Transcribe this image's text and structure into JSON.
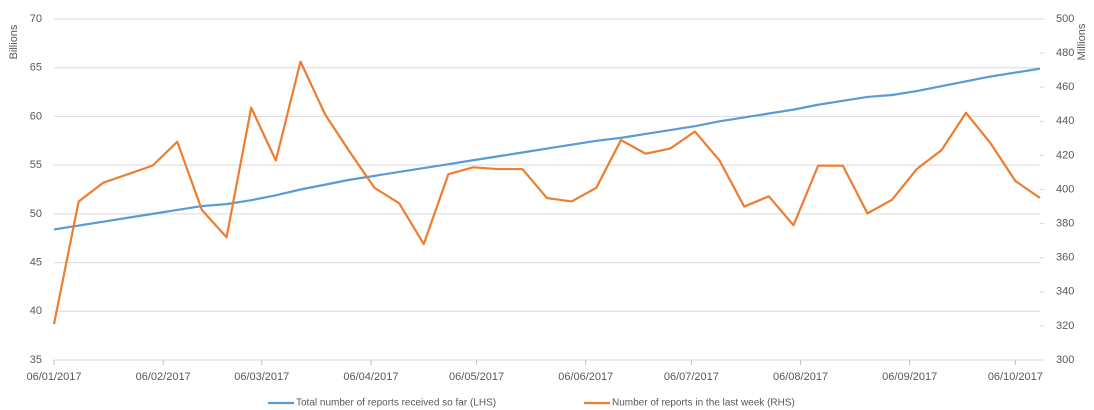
{
  "chart_data": {
    "type": "line",
    "y_label": "Billions",
    "y2_label": "Millions",
    "x": [
      "06/01/2017",
      "13/01/2017",
      "20/01/2017",
      "27/01/2017",
      "03/02/2017",
      "10/02/2017",
      "17/02/2017",
      "24/02/2017",
      "03/03/2017",
      "10/03/2017",
      "17/03/2017",
      "24/03/2017",
      "31/03/2017",
      "07/04/2017",
      "14/04/2017",
      "21/04/2017",
      "28/04/2017",
      "05/05/2017",
      "12/05/2017",
      "19/05/2017",
      "26/05/2017",
      "02/06/2017",
      "09/06/2017",
      "16/06/2017",
      "23/06/2017",
      "30/06/2017",
      "07/07/2017",
      "14/07/2017",
      "21/07/2017",
      "28/07/2017",
      "04/08/2017",
      "11/08/2017",
      "18/08/2017",
      "25/08/2017",
      "01/09/2017",
      "08/09/2017",
      "15/09/2017",
      "22/09/2017",
      "29/09/2017",
      "06/10/2017",
      "13/10/2017"
    ],
    "xticks": [
      "06/01/2017",
      "06/02/2017",
      "06/03/2017",
      "06/04/2017",
      "06/05/2017",
      "06/06/2017",
      "06/07/2017",
      "06/08/2017",
      "06/09/2017",
      "06/10/2017"
    ],
    "series": [
      {
        "name": "Total number of reports received so far (LHS)",
        "color": "#5b9bd5",
        "axis": "y",
        "values": [
          48.4,
          48.8,
          49.2,
          49.6,
          50.0,
          50.4,
          50.8,
          51.0,
          51.4,
          51.9,
          52.5,
          53.0,
          53.5,
          53.9,
          54.3,
          54.7,
          55.1,
          55.5,
          55.9,
          56.3,
          56.7,
          57.1,
          57.5,
          57.8,
          58.2,
          58.6,
          59.0,
          59.5,
          59.9,
          60.3,
          60.7,
          61.2,
          61.6,
          62.0,
          62.2,
          62.6,
          63.1,
          63.6,
          64.1,
          64.5,
          64.9
        ]
      },
      {
        "name": "Number of reports in the last week (RHS)",
        "color": "#ed7d31",
        "axis": "y2",
        "values": [
          321,
          393,
          404,
          409,
          414,
          428,
          388,
          372,
          448,
          417,
          475,
          444,
          422,
          401,
          392,
          368,
          409,
          413,
          412,
          412,
          395,
          393,
          401,
          429,
          421,
          424,
          434,
          417,
          390,
          396,
          379,
          414,
          414,
          386,
          394,
          412,
          423,
          445,
          427,
          405,
          395
        ]
      }
    ],
    "ylim": [
      35,
      70
    ],
    "yticks": [
      35,
      40,
      45,
      50,
      55,
      60,
      65,
      70
    ],
    "y2lim": [
      300,
      500
    ],
    "y2ticks": [
      300,
      320,
      340,
      360,
      380,
      400,
      420,
      440,
      460,
      480,
      500
    ],
    "grid": true,
    "legend": "bottom"
  }
}
